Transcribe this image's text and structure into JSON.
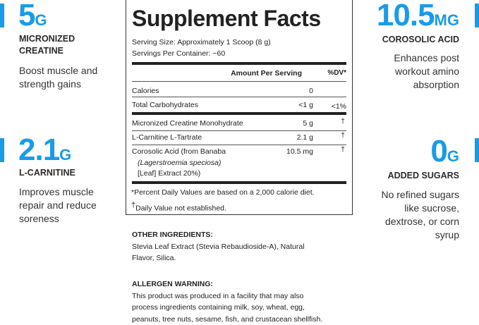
{
  "accent_color": "#1a9be8",
  "callouts": [
    {
      "value": "5",
      "unit": "G",
      "label_lines": [
        "MICRONIZED",
        "CREATINE"
      ],
      "desc_lines": [
        "Boost muscle and",
        "strength gains"
      ]
    },
    {
      "value": "2.1",
      "unit": "G",
      "label_lines": [
        "L-CARNITINE"
      ],
      "desc_lines": [
        "Improves muscle",
        "repair and reduce",
        "soreness"
      ]
    },
    {
      "value": "10.5",
      "unit": "MG",
      "label_lines": [
        "COROSOLIC ACID"
      ],
      "desc_lines": [
        "Enhances post",
        "workout amino",
        "absorption"
      ]
    },
    {
      "value": "0",
      "unit": "G",
      "label_lines": [
        "ADDED SUGARS"
      ],
      "desc_lines": [
        "No refined sugars",
        "like sucrose,",
        "dextrose, or corn",
        "syrup"
      ]
    }
  ],
  "facts": {
    "title": "Supplement Facts",
    "serving_size": "Serving Size: Approximately 1 Scoop (8 g)",
    "servings_per_container": "Servings Per Container: ~60",
    "header_amount": "Amount Per Serving",
    "header_dv": "%DV*",
    "rows": [
      {
        "name": "Calories",
        "amount": "0",
        "dv": ""
      },
      {
        "name": "Total Carbohydrates",
        "amount": "<1 g",
        "dv": "<1%"
      },
      {
        "name": "Micronized Creatine Monohydrate",
        "amount": "5 g",
        "dv": "†"
      },
      {
        "name": "L-Carnitine L-Tartrate",
        "amount": "2.1 g",
        "dv": "†"
      },
      {
        "name": "Corosolic Acid (from Banaba",
        "name_italic": "(Lagerstroemia speciosa)",
        "name_line3": "[Leaf] Extract 20%)",
        "amount": "10.5 mg",
        "dv": "†"
      }
    ],
    "footnote_1": "*Percent Daily Values are based on a 2,000 calorie diet.",
    "footnote_2_symbol": "†",
    "footnote_2": "Daily Value not established."
  },
  "other_ingredients": {
    "heading": "OTHER INGREDIENTS:",
    "lines": [
      "Stevia Leaf Extract (Stevia Rebaudioside-A), Natural",
      "Flavor, Silica."
    ]
  },
  "allergen": {
    "heading": "ALLERGEN WARNING:",
    "lines": [
      "This product was produced in a facility that may also",
      "process ingredients containing milk, soy, wheat, egg,",
      "peanuts, tree nuts, sesame, fish, and crustacean shellfish."
    ]
  }
}
